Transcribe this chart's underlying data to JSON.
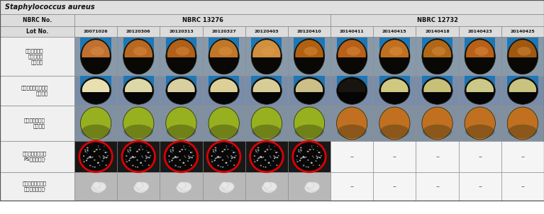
{
  "title": "Staphylococcus aureus",
  "nbrc_no_label": "NBRC No.",
  "lot_no_label": "Lot No.",
  "lot_numbers": [
    "20071026",
    "20120306",
    "20120313",
    "20120327",
    "20120403",
    "20120410",
    "20140411",
    "20140415",
    "20140418",
    "20140423",
    "20140425"
  ],
  "row_labels": [
    "フォーグル・\nジョンソン\n寒天培地",
    "ベアード・パーカー\n寒天培地",
    "マンニット食塩\n寒天培地",
    "コアグラーゼ試験\nPSラテックス·",
    "コアグラーゼ試験\nウサギプラズマ·"
  ],
  "dash_symbol": "–",
  "red_circle_color": "#dd0000",
  "title_bg": "#e0e0e0",
  "header_bg": "#dcdcdc",
  "row_bg_odd": "#ebebeb",
  "row_bg_even": "#f5f5f5",
  "cell_bg_vj": "#8899aa",
  "cell_bg_bp": "#7788aa",
  "cell_bg_ms": "#8899aa",
  "cell_bg_coag": "#1a1a1a",
  "cell_bg_rabbit": "#c8c8c8",
  "border_color": "#aaaaaa",
  "text_color": "#111111",
  "vj_top_colors": [
    "#c07030",
    "#b86820",
    "#b06018",
    "#c07828",
    "#d09040",
    "#b06010",
    "#b86018",
    "#c07020",
    "#b06818",
    "#b86018",
    "#a05810"
  ],
  "vj_btm_color": "#100800",
  "bp_top_colors": [
    "#e8e0b0",
    "#ddd8a8",
    "#d8d0a0",
    "#dcd098",
    "#d8cc98",
    "#ccc088",
    "#181510",
    "#d0c880",
    "#c8c078",
    "#ccc888",
    "#c8c480"
  ],
  "bp_btm_color": "#0a0a0a",
  "ms_top_colors_13276": "#96b020",
  "ms_top_colors_12732": "#c07020",
  "ms_btm_color": "#3a3a20",
  "coag_bg": "#080808",
  "coag_speckle": "#cccccc",
  "rabbit_bg": "#d0d0d0"
}
